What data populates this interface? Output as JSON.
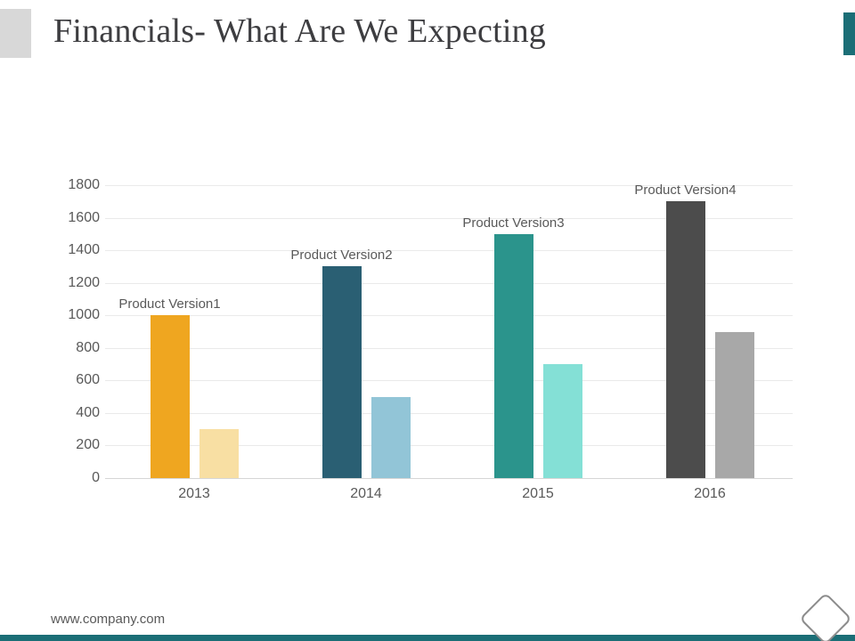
{
  "slide": {
    "title": "Financials- What Are We Expecting",
    "title_color": "#3d3d40",
    "footer": {
      "website": "www.company.com"
    },
    "accent_colors": {
      "top_left_square": "#d8d8d8",
      "top_right_bar": "#1b6e76",
      "bottom_bar": "#1b6e76"
    }
  },
  "chart_data": {
    "type": "bar",
    "title": "",
    "xlabel": "",
    "ylabel": "",
    "categories": [
      "2013",
      "2014",
      "2015",
      "2016"
    ],
    "series": [
      {
        "name": "primary",
        "values": [
          1000,
          1300,
          1500,
          1700
        ]
      },
      {
        "name": "secondary",
        "values": [
          300,
          500,
          700,
          900
        ]
      }
    ],
    "point_labels": [
      "Product Version1",
      "Product Version2",
      "Product Version3",
      "Product Version4"
    ],
    "primary_colors": [
      "#efa620",
      "#2a5f73",
      "#2b948c",
      "#4c4c4c"
    ],
    "secondary_colors": [
      "#f8dfa3",
      "#92c5d7",
      "#84e0d6",
      "#a8a8a8"
    ],
    "ylim": [
      0,
      1800
    ],
    "ytick_step": 200,
    "grid": true,
    "legend": "none",
    "grid_color": "#eaeaea",
    "axis_color": "#d6d6d6",
    "label_color": "#595959"
  }
}
